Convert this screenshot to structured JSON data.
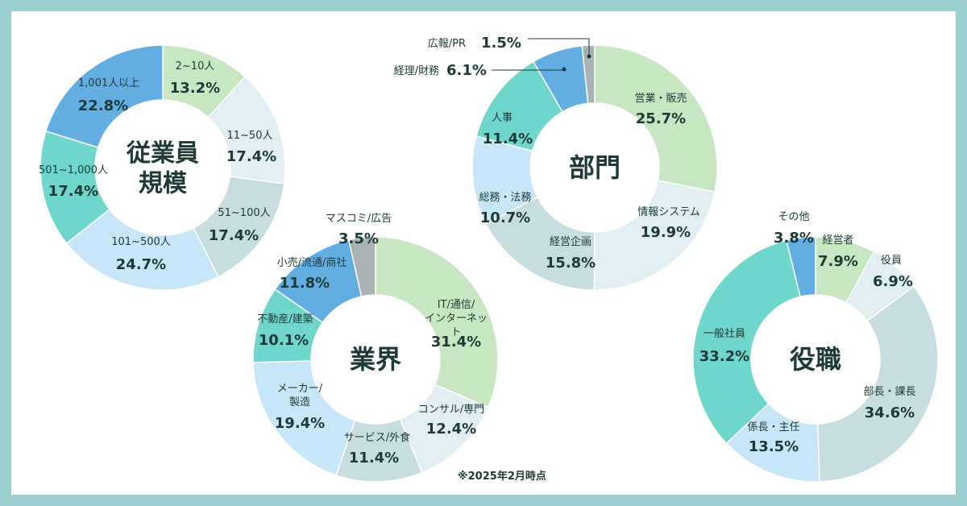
{
  "footnote": "※2025年2月時点",
  "chart_data": [
    {
      "type": "pie",
      "title": "従業員規模",
      "categories": [
        "2~10人",
        "11~50人",
        "51~100人",
        "101~500人",
        "501~1,000人",
        "1,001人以上"
      ],
      "values": [
        13.2,
        17.4,
        17.4,
        24.7,
        17.4,
        22.8
      ],
      "value_labels": [
        "13.2%",
        "17.4%",
        "17.4%",
        "24.7%",
        "17.4%",
        "22.8%"
      ],
      "colors": [
        "#c8e6c1",
        "#e1eff2",
        "#c7dde0",
        "#c7e6f8",
        "#6fd6cb",
        "#62aee2"
      ]
    },
    {
      "type": "pie",
      "title": "部門",
      "categories": [
        "営業・販売",
        "情報システム",
        "経営企画",
        "総務・法務",
        "人事",
        "経理/財務",
        "広報/PR"
      ],
      "values": [
        25.7,
        19.9,
        15.8,
        10.7,
        11.4,
        6.1,
        1.5
      ],
      "value_labels": [
        "25.7%",
        "19.9%",
        "15.8%",
        "10.7%",
        "11.4%",
        "6.1%",
        "1.5%"
      ],
      "colors": [
        "#c8e6c1",
        "#e1eff2",
        "#c7dde0",
        "#c7e6f8",
        "#6fd6cb",
        "#62aee2",
        "#a8b2b5"
      ]
    },
    {
      "type": "pie",
      "title": "業界",
      "categories": [
        "IT/通信/インターネット",
        "コンサル/専門",
        "サービス/外食",
        "メーカー/製造",
        "不動産/建築",
        "小売/流通/商社",
        "マスコミ/広告"
      ],
      "values": [
        31.4,
        12.4,
        11.4,
        19.4,
        10.1,
        11.8,
        3.5
      ],
      "value_labels": [
        "31.4%",
        "12.4%",
        "11.4%",
        "19.4%",
        "10.1%",
        "11.8%",
        "3.5%"
      ],
      "colors": [
        "#c8e6c1",
        "#e1eff2",
        "#c7dde0",
        "#c7e6f8",
        "#6fd6cb",
        "#62aee2",
        "#a8b2b5"
      ]
    },
    {
      "type": "pie",
      "title": "役職",
      "categories": [
        "経営者",
        "役員",
        "部長・課長",
        "係長・主任",
        "一般社員",
        "その他"
      ],
      "values": [
        7.9,
        6.9,
        34.6,
        13.5,
        33.2,
        3.8
      ],
      "value_labels": [
        "7.9%",
        "6.9%",
        "34.6%",
        "13.5%",
        "33.2%",
        "3.8%"
      ],
      "colors": [
        "#c8e6c1",
        "#e1eff2",
        "#c7dde0",
        "#c7e6f8",
        "#6fd6cb",
        "#62aee2"
      ]
    }
  ]
}
